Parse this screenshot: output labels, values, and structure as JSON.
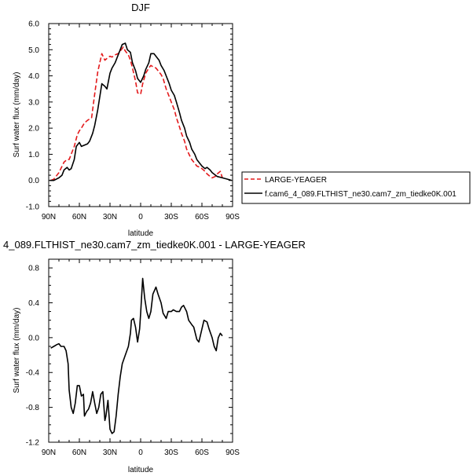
{
  "chart_data": [
    {
      "type": "line",
      "title": "DJF",
      "xlabel": "latitude",
      "ylabel": "Surf water flux (mm/day)",
      "xlim": [
        -90,
        90
      ],
      "ylim": [
        -1.0,
        6.0
      ],
      "xticks": [
        -90,
        -60,
        -30,
        0,
        30,
        60,
        90
      ],
      "xticklabels": [
        "90N",
        "60N",
        "30N",
        "0",
        "30S",
        "60S",
        "90S"
      ],
      "yticks": [
        -1.0,
        0.0,
        1.0,
        2.0,
        3.0,
        4.0,
        5.0,
        6.0
      ],
      "yticklabels": [
        "-1.0",
        "0.0",
        "1.0",
        "2.0",
        "3.0",
        "4.0",
        "5.0",
        "6.0"
      ],
      "legend_position": "right, outside plot",
      "series": [
        {
          "name": "LARGE-YEAGER",
          "color": "#e41a1c",
          "dash": "dashed",
          "x": [
            -88,
            -85,
            -80,
            -75,
            -72,
            -70,
            -68,
            -65,
            -62,
            -60,
            -58,
            -55,
            -52,
            -50,
            -48,
            -45,
            -42,
            -40,
            -38,
            -35,
            -32,
            -30,
            -28,
            -25,
            -22,
            -20,
            -17,
            -15,
            -12,
            -10,
            -8,
            -5,
            -3,
            0,
            2,
            5,
            8,
            10,
            12,
            15,
            18,
            20,
            22,
            25,
            28,
            30,
            33,
            35,
            38,
            40,
            43,
            45,
            48,
            50,
            53,
            55,
            58,
            60,
            63,
            65,
            68,
            70,
            73,
            75,
            78,
            80
          ],
          "y": [
            0.0,
            0.05,
            0.3,
            0.7,
            0.8,
            0.8,
            1.0,
            1.3,
            1.75,
            1.9,
            2.0,
            2.2,
            2.3,
            2.35,
            2.4,
            3.3,
            4.15,
            4.5,
            4.85,
            4.6,
            4.7,
            4.75,
            4.72,
            4.8,
            4.85,
            4.95,
            5.1,
            4.95,
            4.8,
            4.6,
            4.3,
            3.8,
            3.35,
            3.3,
            3.7,
            4.1,
            4.3,
            4.4,
            4.35,
            4.3,
            4.15,
            4.05,
            3.9,
            3.5,
            3.2,
            3.0,
            2.7,
            2.4,
            2.05,
            1.8,
            1.5,
            1.2,
            0.95,
            0.8,
            0.65,
            0.55,
            0.5,
            0.45,
            0.35,
            0.25,
            0.15,
            0.1,
            0.15,
            0.25,
            0.35,
            0.1
          ]
        },
        {
          "name": "f.cam6_4_089.FLTHIST_ne30.cam7_zm_tiedke0K.001",
          "color": "#000000",
          "dash": "solid",
          "x": [
            -89,
            -85,
            -80,
            -77,
            -75,
            -72,
            -70,
            -68,
            -65,
            -63,
            -60,
            -58,
            -55,
            -52,
            -50,
            -47,
            -45,
            -42,
            -40,
            -38,
            -35,
            -33,
            -30,
            -28,
            -25,
            -22,
            -20,
            -18,
            -15,
            -13,
            -10,
            -8,
            -5,
            -3,
            0,
            3,
            5,
            8,
            10,
            13,
            15,
            18,
            20,
            23,
            25,
            28,
            30,
            33,
            35,
            38,
            40,
            43,
            45,
            48,
            50,
            53,
            55,
            58,
            60,
            63,
            65,
            68,
            70,
            75,
            80,
            85,
            89
          ],
          "y": [
            0.0,
            0.0,
            0.1,
            0.2,
            0.4,
            0.5,
            0.4,
            0.45,
            0.8,
            1.3,
            1.45,
            1.3,
            1.35,
            1.4,
            1.5,
            1.8,
            2.1,
            2.7,
            3.2,
            3.7,
            3.6,
            3.5,
            4.1,
            4.3,
            4.5,
            4.8,
            5.0,
            5.2,
            5.25,
            5.0,
            4.9,
            4.5,
            4.2,
            3.9,
            3.75,
            4.0,
            4.25,
            4.5,
            4.85,
            4.85,
            4.75,
            4.6,
            4.4,
            4.2,
            4.0,
            3.7,
            3.45,
            3.25,
            3.0,
            2.6,
            2.3,
            2.0,
            1.7,
            1.45,
            1.2,
            1.0,
            0.8,
            0.65,
            0.55,
            0.45,
            0.5,
            0.4,
            0.3,
            0.15,
            0.1,
            0.05,
            0.0
          ]
        }
      ]
    },
    {
      "type": "line",
      "title": "4_089.FLTHIST_ne30.cam7_zm_tiedke0K.001 - LARGE-YEAGER",
      "xlabel": "latitude",
      "ylabel": "Surf water flux (mm/day)",
      "xlim": [
        -90,
        90
      ],
      "ylim": [
        -1.2,
        0.9
      ],
      "xticks": [
        -90,
        -60,
        -30,
        0,
        30,
        60,
        90
      ],
      "xticklabels": [
        "90N",
        "60N",
        "30N",
        "0",
        "30S",
        "60S",
        "90S"
      ],
      "yticks": [
        -1.2,
        -0.8,
        -0.4,
        0.0,
        0.4,
        0.8
      ],
      "yticklabels": [
        "-1.2",
        "-0.8",
        "-0.4",
        "0.0",
        "0.4",
        "0.8"
      ],
      "series": [
        {
          "color": "#000000",
          "x": [
            -88,
            -85,
            -82,
            -80,
            -78,
            -75,
            -73,
            -71,
            -70,
            -68,
            -66,
            -64,
            -62,
            -60,
            -58,
            -56,
            -55,
            -53,
            -51,
            -49,
            -47,
            -45,
            -43,
            -41,
            -39,
            -37,
            -35,
            -34,
            -32,
            -30,
            -28,
            -26,
            -24,
            -22,
            -20,
            -18,
            -15,
            -12,
            -10,
            -9,
            -7,
            -5,
            -3,
            -1,
            0,
            2,
            4,
            6,
            8,
            10,
            12,
            15,
            17,
            20,
            22,
            25,
            27,
            30,
            32,
            35,
            38,
            40,
            42,
            45,
            47,
            50,
            52,
            55,
            57,
            60,
            62,
            65,
            67,
            70,
            72,
            74,
            76,
            78,
            80
          ],
          "y": [
            -0.12,
            -0.1,
            -0.08,
            -0.07,
            -0.1,
            -0.1,
            -0.15,
            -0.3,
            -0.6,
            -0.8,
            -0.87,
            -0.75,
            -0.55,
            -0.55,
            -0.67,
            -0.65,
            -0.9,
            -0.85,
            -0.82,
            -0.75,
            -0.62,
            -0.75,
            -0.87,
            -0.8,
            -0.65,
            -0.62,
            -0.95,
            -0.9,
            -0.72,
            -1.05,
            -1.1,
            -1.08,
            -0.9,
            -0.65,
            -0.45,
            -0.3,
            -0.2,
            -0.1,
            0.05,
            0.2,
            0.22,
            0.12,
            -0.05,
            0.1,
            0.28,
            0.68,
            0.45,
            0.3,
            0.22,
            0.3,
            0.5,
            0.58,
            0.5,
            0.4,
            0.28,
            0.22,
            0.3,
            0.3,
            0.32,
            0.3,
            0.3,
            0.35,
            0.37,
            0.3,
            0.2,
            0.15,
            0.12,
            -0.02,
            -0.05,
            0.1,
            0.2,
            0.18,
            0.1,
            0.0,
            -0.1,
            -0.15,
            0.0,
            0.05,
            0.02
          ]
        }
      ]
    }
  ]
}
